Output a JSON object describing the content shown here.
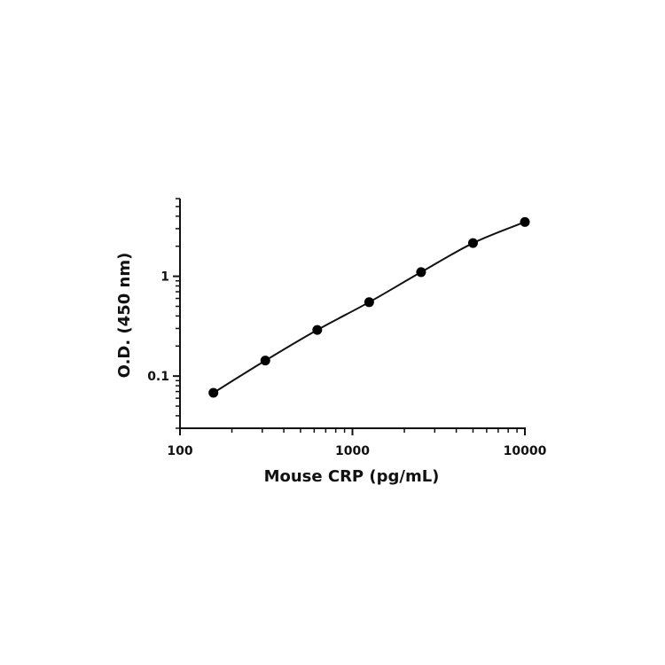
{
  "chart_data": {
    "type": "scatter",
    "title": "",
    "xlabel": "Mouse CRP (pg/mL)",
    "ylabel": "O.D. (450 nm)",
    "x_scale": "log",
    "y_scale": "log",
    "xlim": [
      100,
      10000
    ],
    "ylim": [
      0.03,
      6
    ],
    "x_ticks": [
      100,
      1000,
      10000
    ],
    "x_tick_labels": [
      "100",
      "1000",
      "10000"
    ],
    "y_ticks": [
      0.1,
      1
    ],
    "y_tick_labels": [
      "0.1",
      "1"
    ],
    "grid": false,
    "legend": "none",
    "series": [
      {
        "x": [
          156.25,
          312.5,
          625,
          1250,
          2500,
          5000,
          10000
        ],
        "y": [
          0.068,
          0.143,
          0.29,
          0.55,
          1.1,
          2.15,
          3.5
        ],
        "marker": "filled-circle",
        "curve_fit": true,
        "color": "#000000"
      }
    ]
  }
}
